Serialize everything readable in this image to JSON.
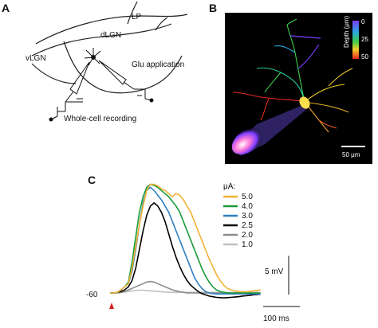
{
  "panel_a": {
    "letter": "A",
    "labels": {
      "lp": "LP",
      "dlgn": "dLGN",
      "vlgn": "vLGN",
      "glu": "Glu application",
      "recording": "Whole-cell recording"
    }
  },
  "panel_b": {
    "letter": "B",
    "colorbar_title": "Depth (μm)",
    "colorbar_ticks": [
      "0",
      "25",
      "50"
    ],
    "scale_bar_label": "50 μm"
  },
  "panel_c": {
    "letter": "C",
    "legend_title": "μA:",
    "baseline_label": "-60",
    "scale_v_label": "5 mV",
    "scale_t_label": "100 ms"
  },
  "chart_data": {
    "type": "line",
    "title": "",
    "xlabel": "",
    "ylabel": "",
    "x": [
      0,
      10,
      20,
      30,
      40,
      50,
      60,
      70,
      80,
      90,
      100,
      110,
      120,
      130,
      140,
      150,
      160,
      170,
      180,
      190,
      200,
      210,
      220,
      230,
      240,
      250,
      260,
      270,
      280,
      290,
      300,
      310,
      320,
      330,
      340,
      350,
      360,
      370,
      380,
      390,
      400,
      410
    ],
    "series": [
      {
        "name": "5.0",
        "color": "#f2b233",
        "values": [
          -60,
          -60,
          -59.8,
          -59,
          -58,
          -57,
          -52,
          -45,
          -38,
          -32,
          -27,
          -25,
          -25,
          -25.5,
          -26.5,
          -27,
          -28,
          -29,
          -28,
          -28.5,
          -30,
          -32,
          -34,
          -37,
          -40,
          -43,
          -46,
          -49,
          -51.5,
          -54,
          -56,
          -57.5,
          -58.5,
          -59,
          -59.3,
          -59.5,
          -59.6,
          -59.6,
          -59.5,
          -59.3,
          -59.2,
          -59
        ]
      },
      {
        "name": "4.0",
        "color": "#1a9a3a",
        "values": [
          -60,
          -60,
          -59.8,
          -59,
          -58,
          -56.5,
          -50,
          -42,
          -34,
          -29,
          -26,
          -25,
          -25.3,
          -26,
          -27,
          -28,
          -29,
          -30.5,
          -32,
          -34,
          -37,
          -40,
          -43,
          -46,
          -49,
          -52,
          -54.5,
          -56.5,
          -58,
          -59,
          -59.5,
          -59.8,
          -60,
          -60,
          -60,
          -60,
          -60,
          -60,
          -60,
          -60,
          -60,
          -60
        ]
      },
      {
        "name": "3.0",
        "color": "#2f7fc1",
        "values": [
          -60,
          -60,
          -59.8,
          -59,
          -58,
          -57,
          -53,
          -46,
          -38,
          -31,
          -27,
          -26,
          -27,
          -28.5,
          -30,
          -32,
          -34,
          -37,
          -40,
          -43,
          -46,
          -49,
          -52,
          -55,
          -57,
          -58.5,
          -59.5,
          -60,
          -60.2,
          -60.3,
          -60.3,
          -60.3,
          -60.3,
          -60.3,
          -60.3,
          -60.3,
          -60.3,
          -60.3,
          -60.3,
          -60.3,
          -60.3,
          -60.3
        ]
      },
      {
        "name": "2.5",
        "color": "#000000",
        "values": [
          -60,
          -60,
          -59.8,
          -59.5,
          -59,
          -58,
          -56,
          -52,
          -46,
          -40,
          -35,
          -32,
          -31,
          -32,
          -34,
          -37,
          -41,
          -45,
          -48.5,
          -51.5,
          -54,
          -56,
          -57.5,
          -58.5,
          -59.5,
          -60.2,
          -60.6,
          -61,
          -61.2,
          -61.4,
          -61.5,
          -61.6,
          -61.5,
          -61.4,
          -61.3,
          -61.2,
          -61,
          -60.9,
          -60.8,
          -60.6,
          -60.5,
          -60.4
        ]
      },
      {
        "name": "2.0",
        "color": "#8c8c8c",
        "values": [
          -60,
          -60,
          -60,
          -59.8,
          -59.5,
          -59,
          -58.5,
          -58,
          -57.5,
          -57,
          -56.5,
          -56.3,
          -56.5,
          -57,
          -57.5,
          -58,
          -58.5,
          -59,
          -59.3,
          -59.6,
          -59.8,
          -60,
          -60,
          -60,
          -60,
          -60,
          -60,
          -60,
          -60,
          -60,
          -60,
          -60,
          -60,
          -60,
          -60,
          -60,
          -60,
          -60,
          -60,
          -60,
          -60,
          -60
        ]
      },
      {
        "name": "1.0",
        "color": "#c0c0c0",
        "values": [
          -60,
          -60,
          -60,
          -59.9,
          -59.7,
          -59.5,
          -59.3,
          -59.2,
          -59.1,
          -59.1,
          -59.2,
          -59.3,
          -59.4,
          -59.5,
          -59.6,
          -59.7,
          -59.8,
          -59.8,
          -59.8,
          -59.8,
          -59.8,
          -59.8,
          -59.8,
          -59.8,
          -59.8,
          -59.8,
          -59.8,
          -59.8,
          -59.8,
          -59.8,
          -59.8,
          -59.8,
          -59.8,
          -59.8,
          -59.8,
          -59.8,
          -59.8,
          -59.8,
          -59.8,
          -59.8,
          -59.8,
          -59.8
        ]
      }
    ],
    "stimulus_onset_ms": 40,
    "scale_bar_mv": 5,
    "scale_bar_ms": 100,
    "grid": false
  }
}
